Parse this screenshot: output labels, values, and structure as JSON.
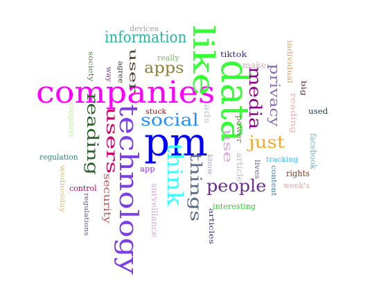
{
  "words": [
    {
      "text": "companies",
      "color": "#ff00ff"
    },
    {
      "text": "pm",
      "color": "#0000ff"
    },
    {
      "text": "data",
      "color": "#33ff33"
    },
    {
      "text": "technology",
      "color": "#7b3fe4"
    },
    {
      "text": "like",
      "color": "#33ff33"
    },
    {
      "text": "people",
      "color": "#6b2c91"
    },
    {
      "text": "social",
      "color": "#1e90ff"
    },
    {
      "text": "think",
      "color": "#33ffff"
    },
    {
      "text": "just",
      "color": "#f5a623"
    },
    {
      "text": "things",
      "color": "#5a6e8c"
    },
    {
      "text": "media",
      "color": "#8b008b"
    },
    {
      "text": "users",
      "color": "#cc0066"
    },
    {
      "text": "reading",
      "color": "#2e5e2e"
    },
    {
      "text": "information",
      "color": "#2ab3a3"
    },
    {
      "text": "apps",
      "color": "#8b7d3a"
    },
    {
      "text": "privacy",
      "color": "#8a6fb3"
    },
    {
      "text": "use",
      "color": "#dda0dd"
    },
    {
      "text": "user",
      "color": "#4a3f2a"
    },
    {
      "text": "security",
      "color": "#b35a5a"
    },
    {
      "text": "make",
      "color": "#d8b0b0"
    },
    {
      "text": "really",
      "color": "#7bb36b"
    },
    {
      "text": "devices",
      "color": "#a0a0a0"
    },
    {
      "text": "tiktok",
      "color": "#3a2a8c"
    },
    {
      "text": "individual",
      "color": "#d8a060"
    },
    {
      "text": "reading",
      "color": "#f0b0b0"
    },
    {
      "text": "used",
      "color": "#1a3a4a"
    },
    {
      "text": "big",
      "color": "#6b2c2c"
    },
    {
      "text": "facebook",
      "color": "#7ab3c0"
    },
    {
      "text": "rights",
      "color": "#7a3a1a"
    },
    {
      "text": "week's",
      "color": "#f0a0a0"
    },
    {
      "text": "tracking",
      "color": "#33b3ff"
    },
    {
      "text": "content",
      "color": "#3a7ab3"
    },
    {
      "text": "lives",
      "color": "#606080"
    },
    {
      "text": "power",
      "color": "#8b7d6b"
    },
    {
      "text": "article",
      "color": "#c0c0c0"
    },
    {
      "text": "know",
      "color": "#b3a0c0"
    },
    {
      "text": "ads",
      "color": "#c0c8d8"
    },
    {
      "text": "stuck",
      "color": "#b30000"
    },
    {
      "text": "app",
      "color": "#9b30ff"
    },
    {
      "text": "surveillance",
      "color": "#d8a8d8"
    },
    {
      "text": "interesting",
      "color": "#33cc33"
    },
    {
      "text": "articles",
      "color": "#3a3a6a"
    },
    {
      "text": "society",
      "color": "#5a7a4a"
    },
    {
      "text": "way",
      "color": "#6b3a8c"
    },
    {
      "text": "agree",
      "color": "#3a3a3a"
    },
    {
      "text": "computers",
      "color": "#c0e8a0"
    },
    {
      "text": "regulation",
      "color": "#2e8b7a"
    },
    {
      "text": "wednesday",
      "color": "#d8c080"
    },
    {
      "text": "control",
      "color": "#b3006b"
    },
    {
      "text": "regulations",
      "color": "#6a5a7a"
    }
  ]
}
